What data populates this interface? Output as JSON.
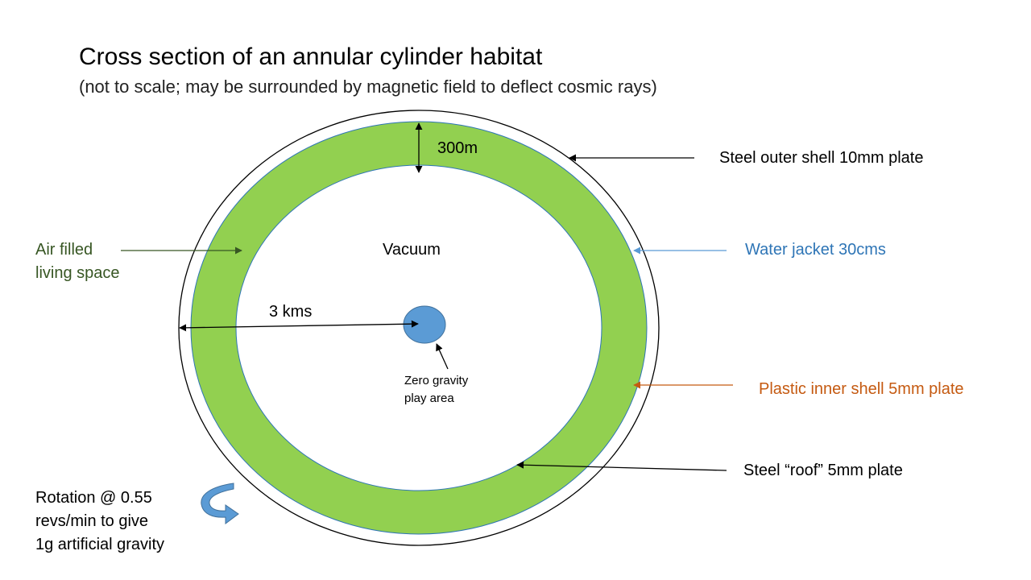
{
  "title": "Cross section of an annular cylinder habitat",
  "subtitle": "(not to scale; may be surrounded by magnetic field to deflect cosmic rays)",
  "labels": {
    "thickness": "300m",
    "vacuum": "Vacuum",
    "radius": "3 kms",
    "zero_gravity_line1": "Zero gravity",
    "zero_gravity_line2": "play area",
    "steel_outer_shell": "Steel outer shell 10mm plate",
    "water_jacket": "Water jacket 30cms",
    "plastic_inner_shell": "Plastic inner shell 5mm plate",
    "steel_roof": "Steel “roof” 5mm plate",
    "air_line1": "Air filled",
    "air_line2": "living space",
    "rotation_line1": "Rotation @ 0.55",
    "rotation_line2": "revs/min to give",
    "rotation_line3": "1g artificial gravity"
  },
  "colors": {
    "living_space": "#92d050",
    "water_jacket": "#2e75b6",
    "plastic_shell": "#c55a11",
    "air_label": "#375623",
    "zero_gravity": "#5b9bd5",
    "rotation_arrow": "#5b9bd5"
  }
}
